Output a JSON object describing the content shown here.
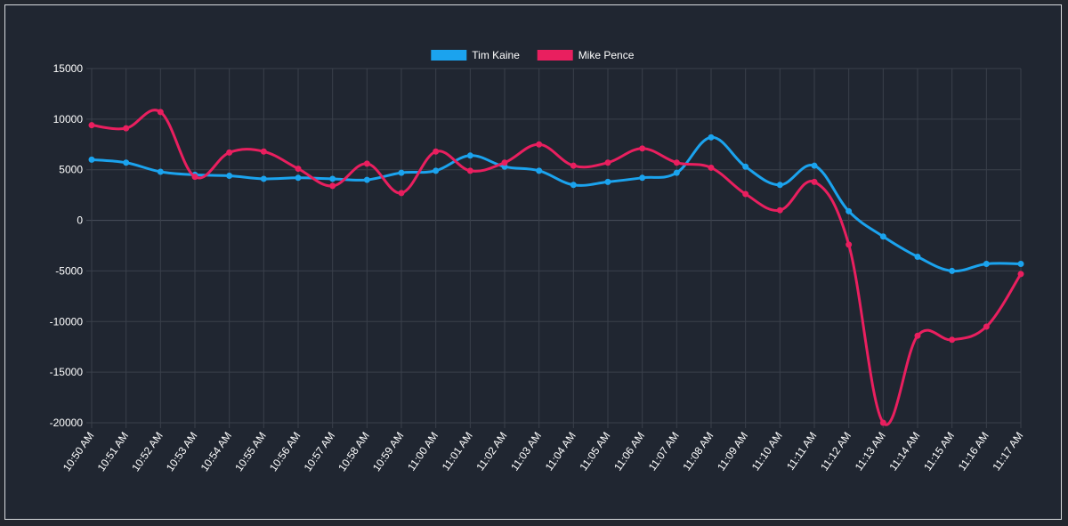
{
  "chart_data": {
    "type": "line",
    "title": "",
    "xlabel": "",
    "ylabel": "",
    "grid": true,
    "legend": "top-center",
    "ylim": [
      -20000,
      15000
    ],
    "yticks": [
      15000,
      10000,
      5000,
      0,
      -5000,
      -10000,
      -15000,
      -20000
    ],
    "categories": [
      "10:50 AM",
      "10:51 AM",
      "10:52 AM",
      "10:53 AM",
      "10:54 AM",
      "10:55 AM",
      "10:56 AM",
      "10:57 AM",
      "10:58 AM",
      "10:59 AM",
      "11:00 AM",
      "11:01 AM",
      "11:02 AM",
      "11:03 AM",
      "11:04 AM",
      "11:05 AM",
      "11:06 AM",
      "11:07 AM",
      "11:08 AM",
      "11:09 AM",
      "11:10 AM",
      "11:11 AM",
      "11:12 AM",
      "11:13 AM",
      "11:14 AM",
      "11:15 AM",
      "11:16 AM",
      "11:17 AM"
    ],
    "series": [
      {
        "name": "Tim Kaine",
        "color": "#1ba3ee",
        "values": [
          6000,
          5700,
          4800,
          4500,
          4400,
          4100,
          4200,
          4100,
          4000,
          4700,
          4900,
          6400,
          5300,
          4900,
          3500,
          3800,
          4200,
          4700,
          8200,
          5300,
          3500,
          5400,
          900,
          -1600,
          -3600,
          -5000,
          -4300,
          -4300
        ]
      },
      {
        "name": "Mike Pence",
        "color": "#e91f5f",
        "values": [
          9400,
          9100,
          10700,
          4300,
          6700,
          6800,
          5100,
          3400,
          5600,
          2700,
          6800,
          4900,
          5700,
          7500,
          5400,
          5700,
          7100,
          5700,
          5200,
          2600,
          1000,
          3800,
          -2400,
          -20000,
          -11400,
          -11800,
          -10500,
          -5300
        ]
      }
    ]
  }
}
